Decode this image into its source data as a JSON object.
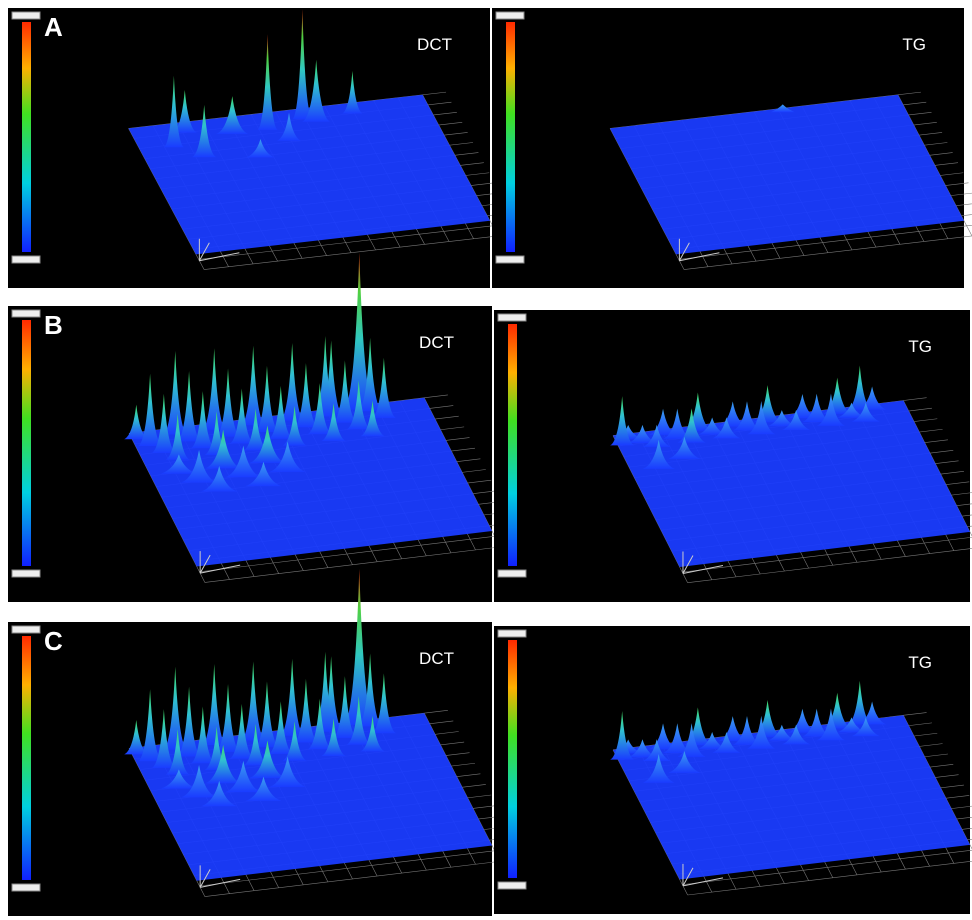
{
  "rows": [
    {
      "label": "A",
      "left": {
        "title": "DCT"
      },
      "right": {
        "title": "TG"
      }
    },
    {
      "label": "B",
      "left": {
        "title": "DCT"
      },
      "right": {
        "title": "TG"
      }
    },
    {
      "label": "C",
      "left": {
        "title": "DCT"
      },
      "right": {
        "title": "TG"
      }
    }
  ]
}
